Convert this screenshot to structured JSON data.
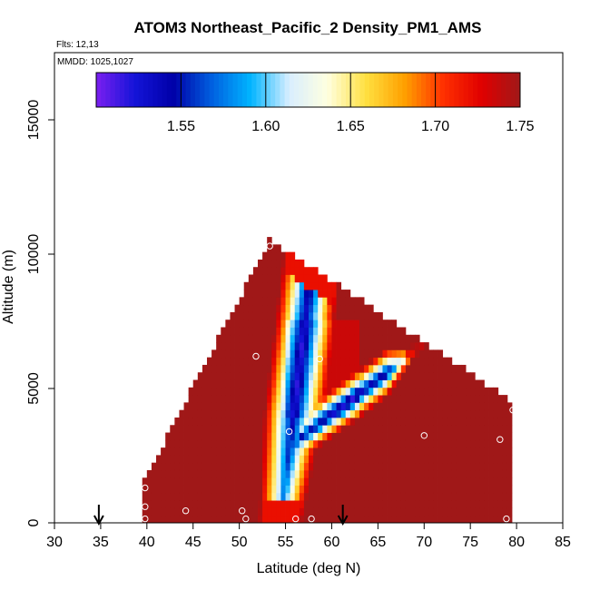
{
  "chart_data": {
    "type": "heatmap",
    "title": "ATOM3 Northeast_Pacific_2 Density_PM1_AMS",
    "subtitle_flights": "Flts: 12,13",
    "subtitle_dates": "MMDD: 1025,1027",
    "xlabel": "Latitude (deg N)",
    "ylabel": "Altitude (m)",
    "xlim": [
      30,
      85
    ],
    "ylim": [
      0,
      17500
    ],
    "x_ticks": [
      "30",
      "35",
      "40",
      "45",
      "50",
      "55",
      "60",
      "65",
      "70",
      "75",
      "80",
      "85"
    ],
    "y_ticks": [
      "0",
      "5000",
      "10000",
      "15000"
    ],
    "grid": false,
    "colorbar": {
      "placement": "top-inside",
      "range": [
        1.5,
        1.75
      ],
      "ticks": [
        "1.55",
        "1.60",
        "1.65",
        "1.70",
        "1.75"
      ],
      "colors": [
        "#7b1ff0",
        "#1414d8",
        "#0000a8",
        "#0060e0",
        "#00b4ff",
        "#d8eeff",
        "#ffffe0",
        "#ffe040",
        "#ffa000",
        "#ff3000",
        "#e00000",
        "#a01818"
      ]
    },
    "arrows_latitude": [
      34.8,
      61.2
    ],
    "profile_points": [
      {
        "lat": 39.8,
        "alt": 1300
      },
      {
        "lat": 39.8,
        "alt": 600
      },
      {
        "lat": 39.8,
        "alt": 150
      },
      {
        "lat": 44.2,
        "alt": 450
      },
      {
        "lat": 50.3,
        "alt": 450
      },
      {
        "lat": 50.7,
        "alt": 150
      },
      {
        "lat": 51.8,
        "alt": 6200
      },
      {
        "lat": 53.3,
        "alt": 10300
      },
      {
        "lat": 55.4,
        "alt": 3400
      },
      {
        "lat": 56.1,
        "alt": 150
      },
      {
        "lat": 57.8,
        "alt": 150
      },
      {
        "lat": 58.7,
        "alt": 6100
      },
      {
        "lat": 70.0,
        "alt": 3250
      },
      {
        "lat": 78.2,
        "alt": 3100
      },
      {
        "lat": 78.9,
        "alt": 150
      },
      {
        "lat": 79.6,
        "alt": 4200
      }
    ]
  }
}
